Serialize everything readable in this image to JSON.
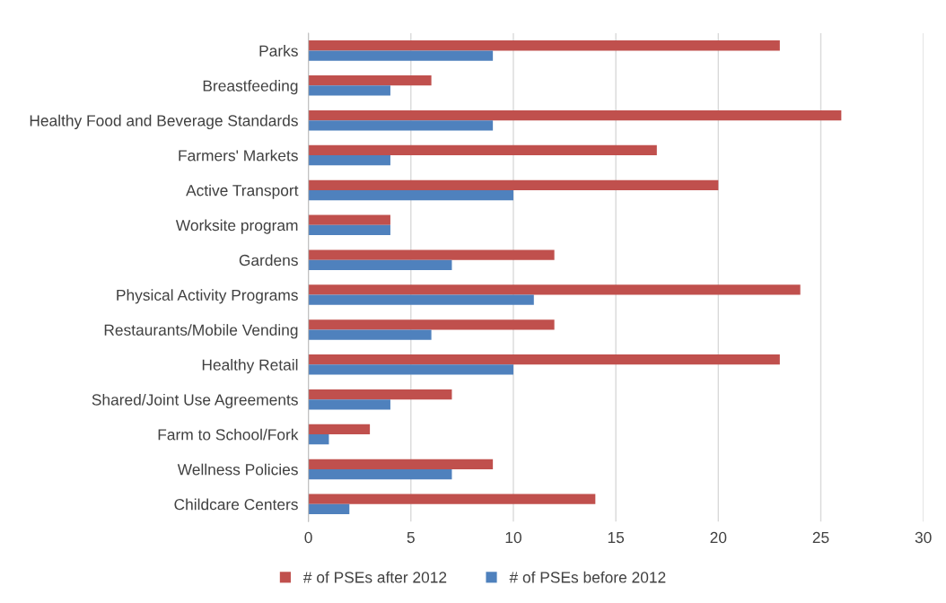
{
  "chart_data": {
    "type": "bar",
    "orientation": "horizontal",
    "categories": [
      "Parks",
      "Breastfeeding",
      "Healthy Food and Beverage Standards",
      "Farmers' Markets",
      "Active Transport",
      "Worksite program",
      "Gardens",
      "Physical Activity Programs",
      "Restaurants/Mobile Vending",
      "Healthy Retail",
      "Shared/Joint Use Agreements",
      "Farm to School/Fork",
      "Wellness Policies",
      "Childcare Centers"
    ],
    "series": [
      {
        "name": "# of PSEs after 2012",
        "color": "#c0504d",
        "values": [
          23,
          6,
          26,
          17,
          20,
          4,
          12,
          24,
          12,
          23,
          7,
          3,
          9,
          14
        ]
      },
      {
        "name": "# of PSEs before 2012",
        "color": "#4f81bd",
        "values": [
          9,
          4,
          9,
          4,
          10,
          4,
          7,
          11,
          6,
          10,
          4,
          1,
          7,
          2
        ]
      }
    ],
    "xlim": [
      0,
      30
    ],
    "xticks": [
      0,
      5,
      10,
      15,
      20,
      25,
      30
    ],
    "grid": "x",
    "legend": "bottom"
  }
}
